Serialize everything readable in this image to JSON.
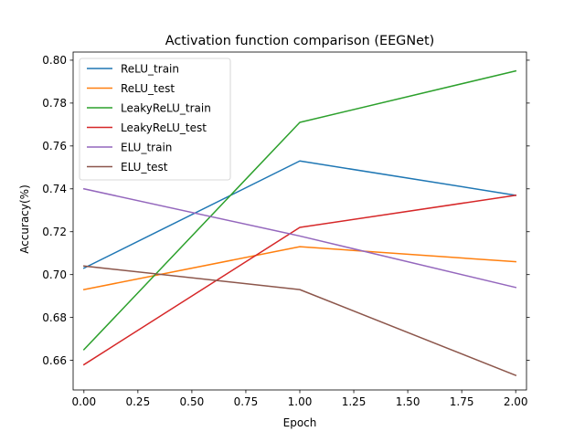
{
  "chart_data": {
    "type": "line",
    "title": "Activation function comparison (EEGNet)",
    "xlabel": "Epoch",
    "ylabel": "Accuracy(%)",
    "x": [
      0,
      1,
      2
    ],
    "xlim": [
      -0.05,
      2.05
    ],
    "ylim": [
      0.6462,
      0.8038
    ],
    "xticks": [
      "0.00",
      "0.25",
      "0.50",
      "0.75",
      "1.00",
      "1.25",
      "1.50",
      "1.75",
      "2.00"
    ],
    "yticks": [
      "0.66",
      "0.68",
      "0.70",
      "0.72",
      "0.74",
      "0.76",
      "0.78",
      "0.80"
    ],
    "grid": false,
    "legend_position": "upper-left",
    "series": [
      {
        "name": "ReLU_train",
        "color": "#1f77b4",
        "values": [
          0.703,
          0.753,
          0.737
        ]
      },
      {
        "name": "ReLU_test",
        "color": "#ff7f0e",
        "values": [
          0.693,
          0.713,
          0.706
        ]
      },
      {
        "name": "LeakyReLU_train",
        "color": "#2ca02c",
        "values": [
          0.665,
          0.771,
          0.795
        ]
      },
      {
        "name": "LeakyReLU_test",
        "color": "#d62728",
        "values": [
          0.658,
          0.722,
          0.737
        ]
      },
      {
        "name": "ELU_train",
        "color": "#9467bd",
        "values": [
          0.74,
          0.718,
          0.694
        ]
      },
      {
        "name": "ELU_test",
        "color": "#8c564b",
        "values": [
          0.704,
          0.693,
          0.653
        ]
      }
    ]
  }
}
